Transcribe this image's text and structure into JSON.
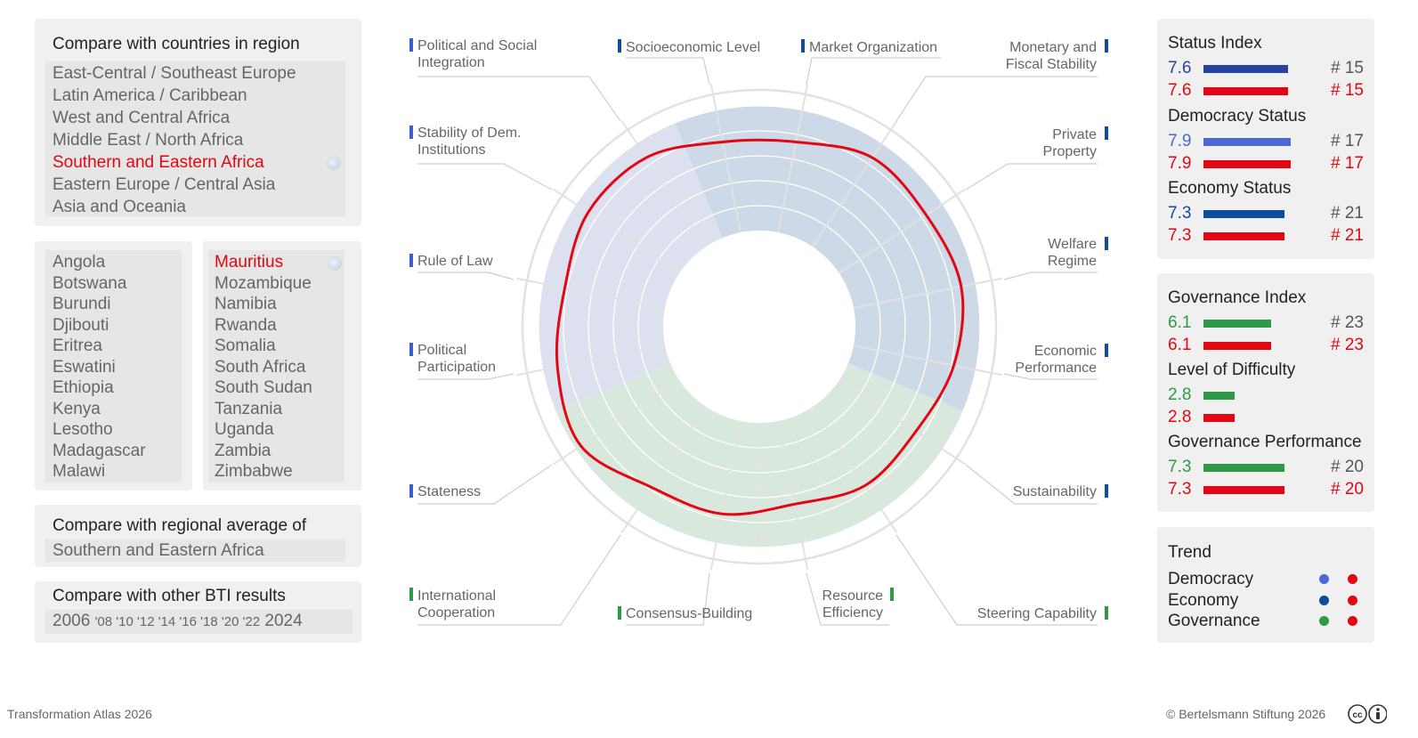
{
  "region_panel": {
    "title": "Compare with countries in region",
    "regions": [
      {
        "label": "East-Central / Southeast Europe",
        "selected": false
      },
      {
        "label": "Latin America / Caribbean",
        "selected": false
      },
      {
        "label": "West and Central Africa",
        "selected": false
      },
      {
        "label": "Middle East / North Africa",
        "selected": false
      },
      {
        "label": "Southern and Eastern Africa",
        "selected": true
      },
      {
        "label": "Eastern Europe / Central Asia",
        "selected": false
      },
      {
        "label": "Asia and Oceania",
        "selected": false
      }
    ]
  },
  "countries_col1": [
    "Angola",
    "Botswana",
    "Burundi",
    "Djibouti",
    "Eritrea",
    "Eswatini",
    "Ethiopia",
    "Kenya",
    "Lesotho",
    "Madagascar",
    "Malawi"
  ],
  "countries_col2": [
    "Mauritius",
    "Mozambique",
    "Namibia",
    "Rwanda",
    "Somalia",
    "South Africa",
    "South Sudan",
    "Tanzania",
    "Uganda",
    "Zambia",
    "Zimbabwe"
  ],
  "selected_country": "Mauritius",
  "regional_avg": {
    "title": "Compare with regional average of",
    "value": "Southern and Eastern Africa"
  },
  "bti_results": {
    "title": "Compare with other BTI results",
    "first_year": "2006",
    "mid_years": "'08 '10 '12 '14 '16 '18 '20 '22",
    "last_year": "2024"
  },
  "radar": {
    "labels": [
      "Political and Social Integration",
      "Socioeconomic Level",
      "Market Organization",
      "Monetary and Fiscal Stability",
      "Stability of Dem. Institutions",
      "Private Property",
      "Rule of Law",
      "Welfare Regime",
      "Political Participation",
      "Economic Performance",
      "Stateness",
      "Sustainability",
      "International Cooperation",
      "Consensus-Building",
      "Resource Efficiency",
      "Steering Capability"
    ],
    "scale": [
      "2",
      "4",
      "6",
      "8",
      "10"
    ],
    "colors": {
      "democracy": "#3a5fcd",
      "economy": "#0f4c9c",
      "governance": "#2e9a47",
      "country": "#e30613"
    }
  },
  "chart_data": {
    "type": "radar",
    "axes": [
      "Stateness",
      "Political Participation",
      "Rule of Law",
      "Stability of Dem. Institutions",
      "Political and Social Integration",
      "Socioeconomic Level",
      "Market Organization",
      "Monetary and Fiscal Stability",
      "Private Property",
      "Welfare Regime",
      "Economic Performance",
      "Sustainability",
      "Steering Capability",
      "Resource Efficiency",
      "Consensus-Building",
      "International Cooperation"
    ],
    "series": [
      {
        "name": "Mauritius",
        "values": [
          9.5,
          8.8,
          8.2,
          8.8,
          8.6,
          7.4,
          7.4,
          8.6,
          8.4,
          8.8,
          8.2,
          7.4,
          7.6,
          6.8,
          7.6,
          7.8
        ]
      }
    ],
    "rlim": [
      0,
      10
    ]
  },
  "status_index": {
    "title": "Status Index",
    "rows": [
      {
        "value": "7.6",
        "rank": "# 15",
        "color": "#2940a5",
        "fill": 0.76
      },
      {
        "value": "7.6",
        "rank": "# 15",
        "color": "#e30613",
        "fill": 0.76
      }
    ]
  },
  "democracy_status": {
    "title": "Democracy Status",
    "rows": [
      {
        "value": "7.9",
        "rank": "# 17",
        "color": "#4a68d8",
        "fill": 0.79
      },
      {
        "value": "7.9",
        "rank": "# 17",
        "color": "#e30613",
        "fill": 0.79
      }
    ]
  },
  "economy_status": {
    "title": "Economy Status",
    "rows": [
      {
        "value": "7.3",
        "rank": "# 21",
        "color": "#0f4c9c",
        "fill": 0.73
      },
      {
        "value": "7.3",
        "rank": "# 21",
        "color": "#e30613",
        "fill": 0.73
      }
    ]
  },
  "governance_index": {
    "title": "Governance Index",
    "rows": [
      {
        "value": "6.1",
        "rank": "# 23",
        "color": "#2e9a47",
        "fill": 0.61
      },
      {
        "value": "6.1",
        "rank": "# 23",
        "color": "#e30613",
        "fill": 0.61
      }
    ]
  },
  "level_of_difficulty": {
    "title": "Level of Difficulty",
    "rows": [
      {
        "value": "2.8",
        "rank": "",
        "color": "#2e9a47",
        "fill": 0.28
      },
      {
        "value": "2.8",
        "rank": "",
        "color": "#e30613",
        "fill": 0.28
      }
    ]
  },
  "governance_performance": {
    "title": "Governance Performance",
    "rows": [
      {
        "value": "7.3",
        "rank": "# 20",
        "color": "#2e9a47",
        "fill": 0.73
      },
      {
        "value": "7.3",
        "rank": "# 20",
        "color": "#e30613",
        "fill": 0.73
      }
    ]
  },
  "trend": {
    "title": "Trend",
    "rows": [
      {
        "label": "Democracy",
        "c1": "#4a68d8",
        "c2": "#e30613"
      },
      {
        "label": "Economy",
        "c1": "#0f4c9c",
        "c2": "#e30613"
      },
      {
        "label": "Governance",
        "c1": "#2e9a47",
        "c2": "#e30613"
      }
    ]
  },
  "footer": {
    "left": "Transformation Atlas 2026",
    "right": "© Bertelsmann Stiftung 2026",
    "license_icon": "cc-by-icon"
  }
}
